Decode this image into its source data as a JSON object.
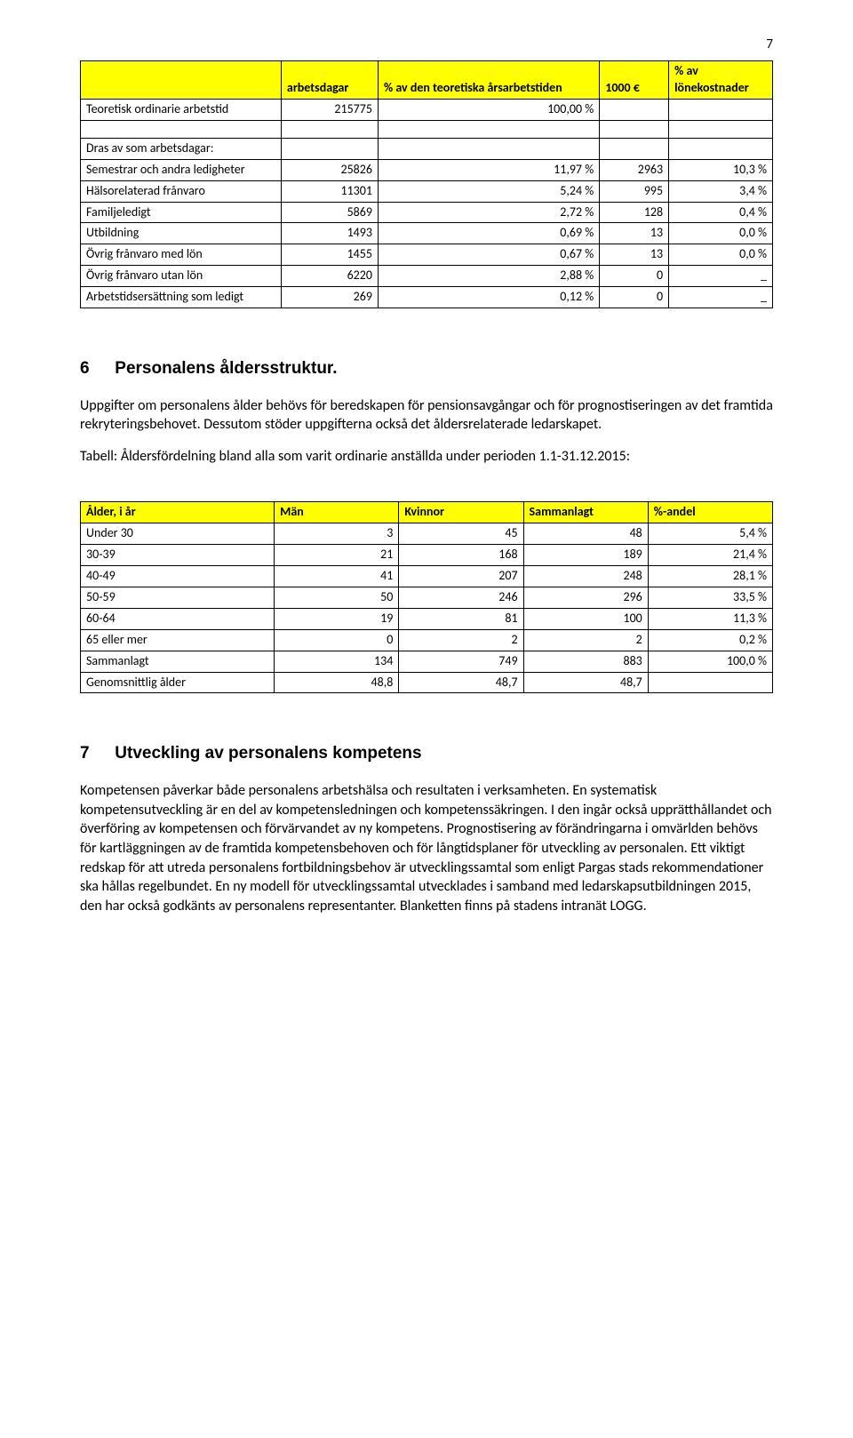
{
  "page_number": "7",
  "table1": {
    "type": "table",
    "header_bg": "#ffff00",
    "border_color": "#000000",
    "columns": [
      "",
      "arbetsdagar",
      "% av den teoretiska årsarbetstiden",
      "1000 €",
      "% av lönekostnader"
    ],
    "rows": [
      {
        "kind": "data",
        "cells": [
          "Teoretisk ordinarie arbetstid",
          "215775",
          "100,00 %",
          "",
          ""
        ]
      },
      {
        "kind": "blank"
      },
      {
        "kind": "data",
        "cells": [
          "Dras av som arbetsdagar:",
          "",
          "",
          "",
          ""
        ]
      },
      {
        "kind": "data",
        "cells": [
          "Semestrar och andra ledigheter",
          "25826",
          "11,97 %",
          "2963",
          "10,3 %"
        ]
      },
      {
        "kind": "data",
        "cells": [
          "Hälsorelaterad frånvaro",
          "11301",
          "5,24 %",
          "995",
          "3,4 %"
        ]
      },
      {
        "kind": "data",
        "cells": [
          "Familjeledigt",
          "5869",
          "2,72 %",
          "128",
          "0,4 %"
        ]
      },
      {
        "kind": "data",
        "cells": [
          "Utbildning",
          "1493",
          "0,69 %",
          "13",
          "0,0 %"
        ]
      },
      {
        "kind": "data",
        "cells": [
          "Övrig frånvaro med lön",
          "1455",
          "0,67 %",
          "13",
          "0,0 %"
        ]
      },
      {
        "kind": "data",
        "cells": [
          "Övrig frånvaro utan lön",
          "6220",
          "2,88 %",
          "0",
          "_"
        ]
      },
      {
        "kind": "data",
        "cells": [
          "Arbetstidsersättning som ledigt",
          "269",
          "0,12 %",
          "0",
          "_"
        ]
      }
    ],
    "right_align_cols": [
      1,
      2,
      3,
      4
    ]
  },
  "section6": {
    "title": "Personalens åldersstruktur.",
    "number": "6",
    "para1": "Uppgifter om personalens ålder behövs för beredskapen för pensionsavgångar och för prognostiseringen av det framtida rekryteringsbehovet. Dessutom stöder uppgifterna också det åldersrelaterade ledarskapet.",
    "para2": "Tabell: Åldersfördelning bland alla som varit ordinarie anställda under perioden 1.1-31.12.2015:"
  },
  "table2": {
    "type": "table",
    "header_bg": "#ffff00",
    "border_color": "#000000",
    "columns": [
      "Ålder, i år",
      "Män",
      "Kvinnor",
      "Sammanlagt",
      "%-andel"
    ],
    "rows": [
      {
        "kind": "data",
        "cells": [
          "Under 30",
          "3",
          "45",
          "48",
          "5,4 %"
        ]
      },
      {
        "kind": "data",
        "cells": [
          "30-39",
          "21",
          "168",
          "189",
          "21,4 %"
        ]
      },
      {
        "kind": "data",
        "cells": [
          "40-49",
          "41",
          "207",
          "248",
          "28,1 %"
        ]
      },
      {
        "kind": "data",
        "cells": [
          "50-59",
          "50",
          "246",
          "296",
          "33,5 %"
        ]
      },
      {
        "kind": "data",
        "cells": [
          "60-64",
          "19",
          "81",
          "100",
          "11,3 %"
        ]
      },
      {
        "kind": "data",
        "cells": [
          "65 eller mer",
          "0",
          "2",
          "2",
          "0,2 %"
        ]
      },
      {
        "kind": "data",
        "cells": [
          "Sammanlagt",
          "134",
          "749",
          "883",
          "100,0 %"
        ]
      },
      {
        "kind": "data",
        "cells": [
          "Genomsnittlig ålder",
          "48,8",
          "48,7",
          "48,7",
          ""
        ]
      }
    ],
    "right_align_cols": [
      1,
      2,
      3,
      4
    ]
  },
  "section7": {
    "title": "Utveckling av personalens kompetens",
    "number": "7",
    "para1": "Kompetensen påverkar både personalens arbetshälsa och resultaten i verksamheten. En systematisk kompetensutveckling är en del av kompetensledningen och kompetenssäkringen. I den ingår också upprätthållandet och överföring av kompetensen och förvärvandet av ny kompetens. Prognostisering av förändringarna i omvärlden behövs för kartläggningen av de framtida kompetensbehoven och för långtidsplaner för utveckling av personalen. Ett viktigt redskap för att utreda personalens fortbildningsbehov är utvecklingssamtal som enligt Pargas stads rekommendationer ska hållas regelbundet. En ny modell för utvecklingssamtal utvecklades i samband med ledarskapsutbildningen 2015, den har också godkänts av personalens representanter. Blanketten finns på stadens intranät LOGG."
  }
}
